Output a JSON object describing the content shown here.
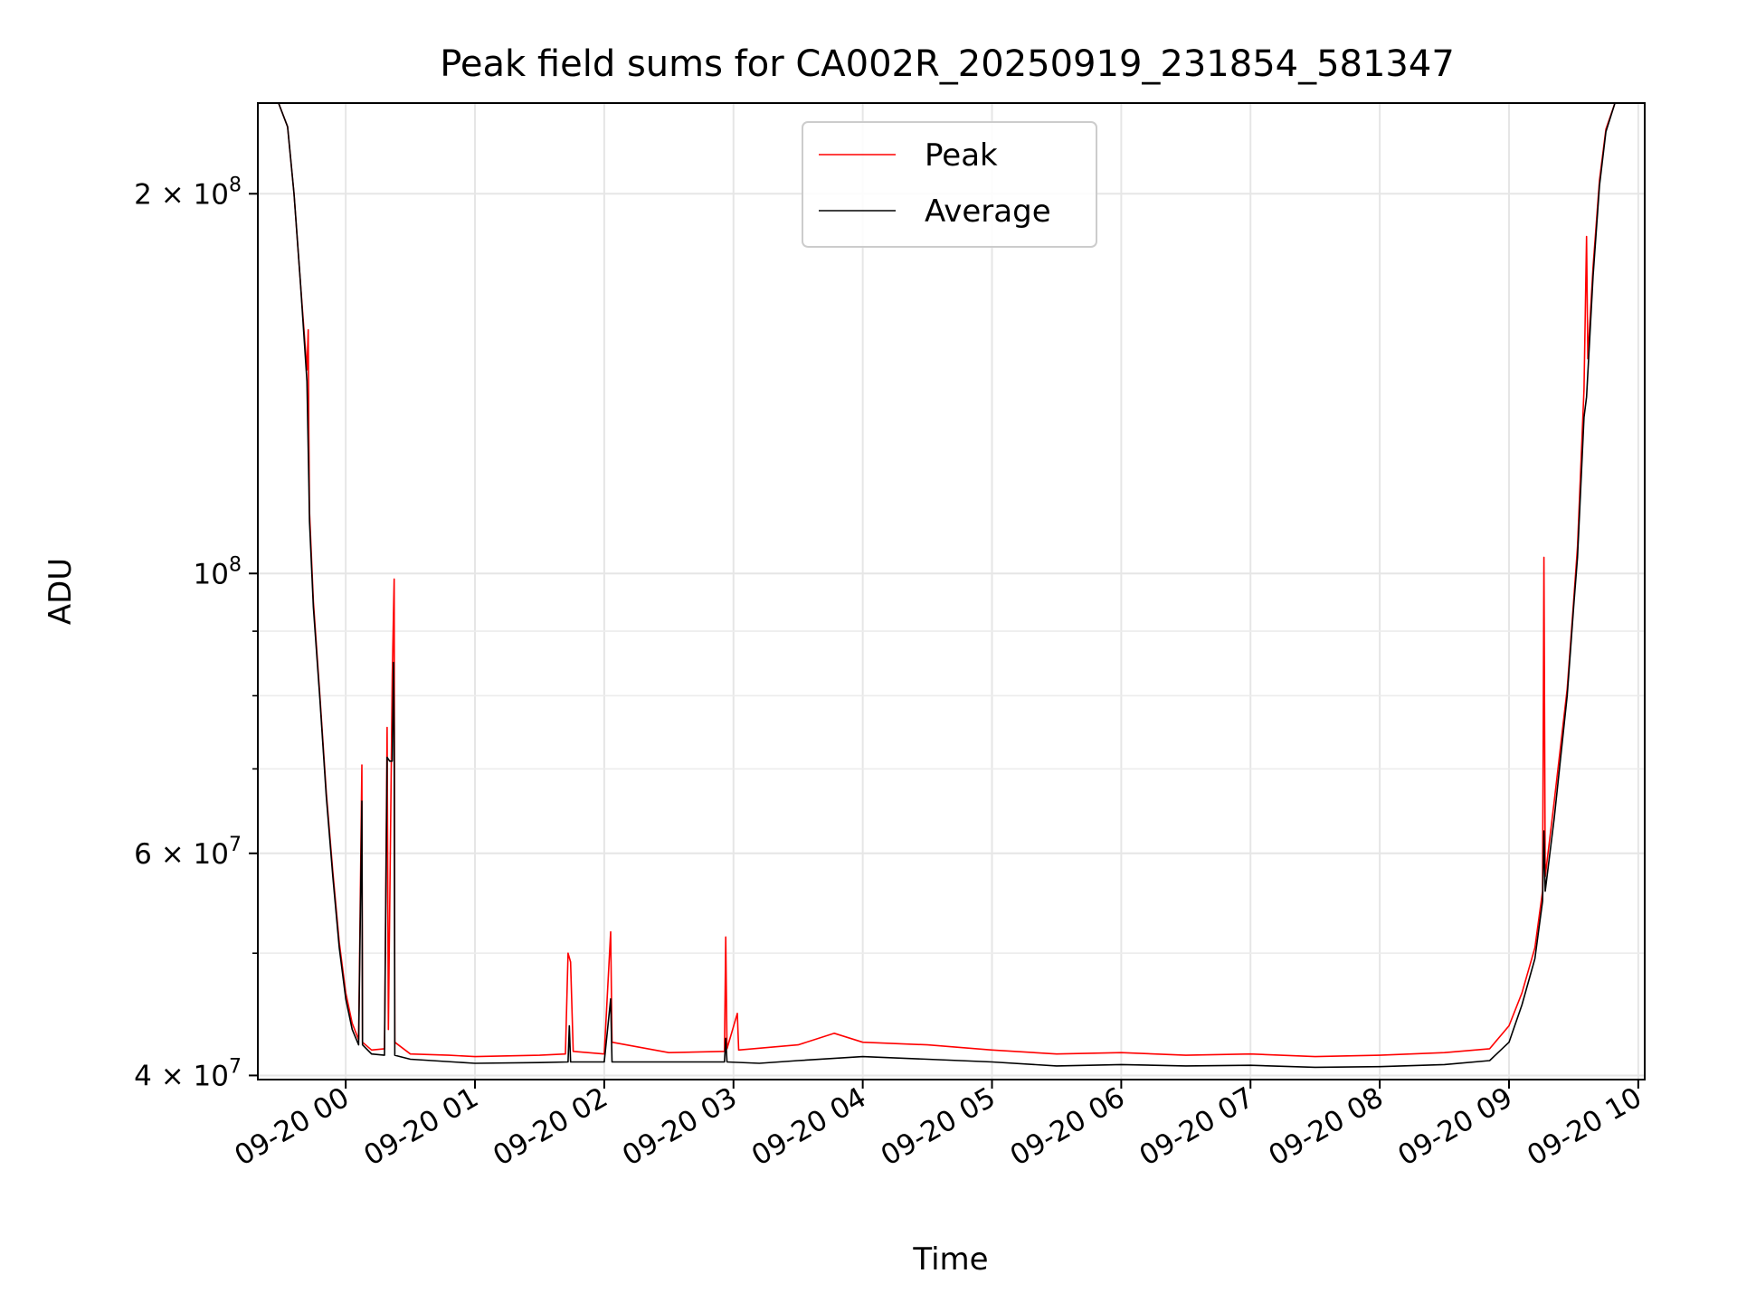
{
  "chart_data": {
    "type": "line",
    "title": "Peak field sums for CA002R_20250919_231854_581347",
    "xlabel": "Time",
    "ylabel": "ADU",
    "yscale": "log",
    "ylim": [
      39700000,
      236000000
    ],
    "xlim": [
      -0.68,
      10.05
    ],
    "x_unit": "hours since 09-20 00:00",
    "grid": true,
    "legend_position": "upper center",
    "x_ticks": [
      {
        "value": 0,
        "label": "09-20 00"
      },
      {
        "value": 1,
        "label": "09-20 01"
      },
      {
        "value": 2,
        "label": "09-20 02"
      },
      {
        "value": 3,
        "label": "09-20 03"
      },
      {
        "value": 4,
        "label": "09-20 04"
      },
      {
        "value": 5,
        "label": "09-20 05"
      },
      {
        "value": 6,
        "label": "09-20 06"
      },
      {
        "value": 7,
        "label": "09-20 07"
      },
      {
        "value": 8,
        "label": "09-20 08"
      },
      {
        "value": 9,
        "label": "09-20 09"
      },
      {
        "value": 10,
        "label": "09-20 10"
      }
    ],
    "y_major_ticks": [
      {
        "value": 40000000,
        "mant": "4",
        "exp": "7"
      },
      {
        "value": 60000000,
        "mant": "6",
        "exp": "7"
      },
      {
        "value": 100000000,
        "mant": "",
        "exp": "8"
      },
      {
        "value": 200000000,
        "mant": "2",
        "exp": "8"
      }
    ],
    "y_minor_ticks": [
      50000000,
      70000000,
      80000000,
      90000000
    ],
    "series": [
      {
        "name": "Peak",
        "color": "#ff0000",
        "points": [
          [
            -0.68,
            236000000
          ],
          [
            -0.52,
            236000000
          ],
          [
            -0.45,
            226000000
          ],
          [
            -0.4,
            200000000
          ],
          [
            -0.35,
            170000000
          ],
          [
            -0.3,
            145000000
          ],
          [
            -0.29,
            156000000
          ],
          [
            -0.285,
            128000000
          ],
          [
            -0.28,
            112000000
          ],
          [
            -0.25,
            95000000
          ],
          [
            -0.2,
            80000000
          ],
          [
            -0.15,
            67000000
          ],
          [
            -0.1,
            58000000
          ],
          [
            -0.05,
            51000000
          ],
          [
            0.0,
            46500000
          ],
          [
            0.05,
            44000000
          ],
          [
            0.1,
            42700000
          ],
          [
            0.125,
            70500000
          ],
          [
            0.13,
            42500000
          ],
          [
            0.2,
            41900000
          ],
          [
            0.3,
            42000000
          ],
          [
            0.32,
            75500000
          ],
          [
            0.33,
            43500000
          ],
          [
            0.36,
            83000000
          ],
          [
            0.375,
            99000000
          ],
          [
            0.38,
            42500000
          ],
          [
            0.5,
            41600000
          ],
          [
            0.8,
            41500000
          ],
          [
            1.0,
            41400000
          ],
          [
            1.5,
            41500000
          ],
          [
            1.7,
            41600000
          ],
          [
            1.72,
            50000000
          ],
          [
            1.74,
            49200000
          ],
          [
            1.76,
            41800000
          ],
          [
            2.0,
            41600000
          ],
          [
            2.05,
            52000000
          ],
          [
            2.06,
            42500000
          ],
          [
            2.5,
            41700000
          ],
          [
            2.93,
            41800000
          ],
          [
            2.94,
            51500000
          ],
          [
            2.95,
            42000000
          ],
          [
            3.03,
            44800000
          ],
          [
            3.04,
            41900000
          ],
          [
            3.5,
            42300000
          ],
          [
            3.78,
            43200000
          ],
          [
            4.0,
            42500000
          ],
          [
            4.5,
            42300000
          ],
          [
            5.0,
            41900000
          ],
          [
            5.5,
            41600000
          ],
          [
            6.0,
            41700000
          ],
          [
            6.5,
            41500000
          ],
          [
            7.0,
            41600000
          ],
          [
            7.5,
            41400000
          ],
          [
            8.0,
            41500000
          ],
          [
            8.5,
            41700000
          ],
          [
            8.85,
            42000000
          ],
          [
            9.0,
            43800000
          ],
          [
            9.1,
            46500000
          ],
          [
            9.2,
            50500000
          ],
          [
            9.26,
            56000000
          ],
          [
            9.27,
            103000000
          ],
          [
            9.28,
            57500000
          ],
          [
            9.35,
            66000000
          ],
          [
            9.45,
            81000000
          ],
          [
            9.5,
            95000000
          ],
          [
            9.53,
            105000000
          ],
          [
            9.58,
            140000000
          ],
          [
            9.6,
            185000000
          ],
          [
            9.61,
            148000000
          ],
          [
            9.65,
            175000000
          ],
          [
            9.7,
            205000000
          ],
          [
            9.75,
            225000000
          ],
          [
            9.82,
            236000000
          ],
          [
            10.05,
            236000000
          ]
        ]
      },
      {
        "name": "Average",
        "color": "#000000",
        "points": [
          [
            -0.68,
            236000000
          ],
          [
            -0.52,
            236000000
          ],
          [
            -0.45,
            226000000
          ],
          [
            -0.4,
            200000000
          ],
          [
            -0.35,
            170000000
          ],
          [
            -0.3,
            142000000
          ],
          [
            -0.285,
            118000000
          ],
          [
            -0.28,
            110000000
          ],
          [
            -0.25,
            94000000
          ],
          [
            -0.2,
            79500000
          ],
          [
            -0.15,
            66500000
          ],
          [
            -0.1,
            57500000
          ],
          [
            -0.05,
            50500000
          ],
          [
            0.0,
            46000000
          ],
          [
            0.05,
            43500000
          ],
          [
            0.1,
            42300000
          ],
          [
            0.125,
            66000000
          ],
          [
            0.13,
            42300000
          ],
          [
            0.2,
            41600000
          ],
          [
            0.3,
            41500000
          ],
          [
            0.32,
            71500000
          ],
          [
            0.34,
            71000000
          ],
          [
            0.36,
            71000000
          ],
          [
            0.37,
            85000000
          ],
          [
            0.375,
            75000000
          ],
          [
            0.38,
            41500000
          ],
          [
            0.5,
            41200000
          ],
          [
            1.0,
            40900000
          ],
          [
            1.5,
            40950000
          ],
          [
            1.72,
            41000000
          ],
          [
            1.73,
            43800000
          ],
          [
            1.74,
            41000000
          ],
          [
            2.0,
            41000000
          ],
          [
            2.05,
            46000000
          ],
          [
            2.06,
            41000000
          ],
          [
            2.5,
            41000000
          ],
          [
            2.93,
            41000000
          ],
          [
            2.94,
            42800000
          ],
          [
            2.95,
            41000000
          ],
          [
            3.2,
            40900000
          ],
          [
            3.5,
            41100000
          ],
          [
            4.0,
            41400000
          ],
          [
            4.5,
            41200000
          ],
          [
            5.0,
            41000000
          ],
          [
            5.5,
            40700000
          ],
          [
            6.0,
            40800000
          ],
          [
            6.5,
            40700000
          ],
          [
            7.0,
            40750000
          ],
          [
            7.5,
            40600000
          ],
          [
            8.0,
            40650000
          ],
          [
            8.5,
            40800000
          ],
          [
            8.85,
            41100000
          ],
          [
            9.0,
            42500000
          ],
          [
            9.1,
            45500000
          ],
          [
            9.2,
            49500000
          ],
          [
            9.26,
            55000000
          ],
          [
            9.27,
            62500000
          ],
          [
            9.28,
            56000000
          ],
          [
            9.35,
            64000000
          ],
          [
            9.45,
            80000000
          ],
          [
            9.5,
            94000000
          ],
          [
            9.53,
            103000000
          ],
          [
            9.58,
            133000000
          ],
          [
            9.6,
            138000000
          ],
          [
            9.65,
            172000000
          ],
          [
            9.7,
            203000000
          ],
          [
            9.75,
            224000000
          ],
          [
            9.82,
            236000000
          ],
          [
            10.05,
            236000000
          ]
        ]
      }
    ]
  }
}
